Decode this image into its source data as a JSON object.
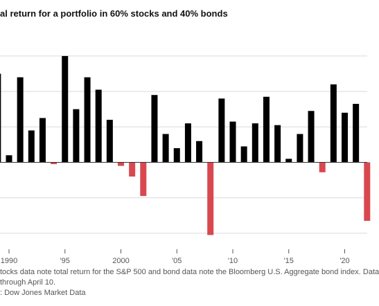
{
  "chart_data": {
    "type": "bar",
    "title": "al return for a portfolio in 60% stocks and 40% bonds",
    "x": [
      1989,
      1990,
      1991,
      1992,
      1993,
      1994,
      1995,
      1996,
      1997,
      1998,
      1999,
      2000,
      2001,
      2002,
      2003,
      2004,
      2005,
      2006,
      2007,
      2008,
      2009,
      2010,
      2011,
      2012,
      2013,
      2014,
      2015,
      2016,
      2017,
      2018,
      2019,
      2020,
      2021,
      2022
    ],
    "values": [
      25,
      2,
      24,
      9,
      12.5,
      -0.5,
      30,
      15,
      24,
      20.5,
      12,
      -1,
      -4,
      -9.5,
      19,
      8,
      4,
      11,
      6,
      -20.5,
      18,
      11.5,
      4.5,
      11,
      18.5,
      10.5,
      1,
      8,
      14.5,
      -2.8,
      22,
      14,
      16.5,
      -16.5
    ],
    "ylim": [
      -20,
      30
    ],
    "ygrid": [
      30,
      20,
      10,
      0,
      -10,
      -20
    ],
    "grid": true,
    "positive_color": "#000000",
    "negative_color": "#d9484f",
    "xticks": [
      {
        "year": 1990,
        "label": "1990"
      },
      {
        "year": 1995,
        "label": "'95"
      },
      {
        "year": 2000,
        "label": "2000"
      },
      {
        "year": 2005,
        "label": "'05"
      },
      {
        "year": 2010,
        "label": "'10"
      },
      {
        "year": 2015,
        "label": "'15"
      },
      {
        "year": 2020,
        "label": "'20"
      }
    ]
  },
  "notes": [
    "tocks data note total return for the S&P 500 and bond data note the Bloomberg U.S. Aggregate bond index. Data",
    " through April 10.",
    ": Dow Jones Market Data"
  ]
}
